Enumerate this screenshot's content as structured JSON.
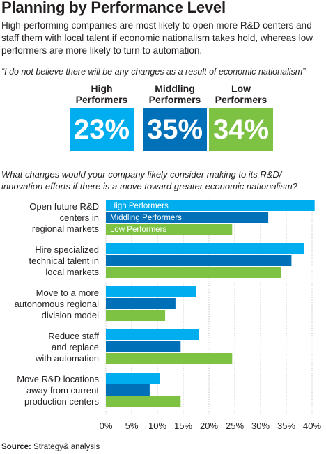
{
  "header": {
    "title": "Planning by Performance Level",
    "subtitle": "High-performing companies are most likely to open more R&D centers and staff them with local talent if economic nationalism takes hold, whereas low performers are more likely to turn to automation."
  },
  "quote": "“I do not believe there will be any changes as a result of economic nationalism”",
  "kpis": [
    {
      "label_line1": "High",
      "label_line2": "Performers",
      "value": "23%",
      "color": "#00aeef"
    },
    {
      "label_line1": "Middling",
      "label_line2": "Performers",
      "value": "35%",
      "color": "#0070b9"
    },
    {
      "label_line1": "Low",
      "label_line2": "Performers",
      "value": "34%",
      "color": "#7dc242"
    }
  ],
  "question": "What changes would your company likely consider making to its R&D/ innovation efforts if there is a move toward greater economic nationalism?",
  "chart_data": {
    "type": "bar",
    "orientation": "horizontal",
    "categories": [
      [
        "Open future R&D",
        "centers in",
        "regional markets"
      ],
      [
        "Hire specialized",
        "technical talent in",
        "local markets"
      ],
      [
        "Move to a more",
        "autonomous regional",
        "division model"
      ],
      [
        "Reduce staff",
        "and replace",
        "with automation"
      ],
      [
        "Move R&D locations",
        "away from current",
        "production centers"
      ]
    ],
    "series": [
      {
        "name": "High Performers",
        "color": "#00aeef",
        "values": [
          40.5,
          38.5,
          17.5,
          18,
          10.5
        ]
      },
      {
        "name": "Middling Performers",
        "color": "#0070b9",
        "values": [
          31.5,
          36,
          13.5,
          14.5,
          8.5
        ]
      },
      {
        "name": "Low Performers",
        "color": "#7dc242",
        "values": [
          24.5,
          34,
          11.5,
          24.5,
          14.5
        ]
      }
    ],
    "xlim": [
      0,
      40
    ],
    "xticks": [
      "0%",
      "5%",
      "10%",
      "15%",
      "20%",
      "25%",
      "30%",
      "35%",
      "40%"
    ],
    "xtick_values": [
      0,
      5,
      10,
      15,
      20,
      25,
      30,
      35,
      40
    ],
    "grid": true,
    "legend": "inside-first-group"
  },
  "source": {
    "label": "Source:",
    "text": " Strategy& analysis"
  }
}
